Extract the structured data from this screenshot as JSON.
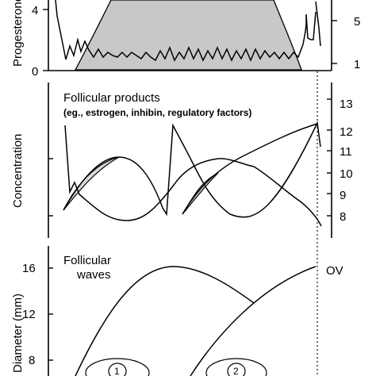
{
  "chart_data": [
    {
      "type": "area",
      "panel": "progesterone",
      "ylabel": "Progesterone",
      "left_ticks": [
        "0",
        "4"
      ],
      "right_ticks": [
        "1",
        "5"
      ],
      "grid": false
    },
    {
      "type": "line",
      "panel": "follicular-products",
      "title": "Follicular products",
      "subtitle": "(eg., estrogen, inhibin, regulatory factors)",
      "ylabel": "Concentration",
      "right_ticks": [
        "8",
        "9",
        "10",
        "11",
        "12",
        "13"
      ],
      "grid": false
    },
    {
      "type": "line",
      "panel": "follicular-waves",
      "title": "Follicular",
      "title_line2": "waves",
      "ylabel": "Diameter (mm)",
      "y_ticks": [
        "8",
        "12",
        "16"
      ],
      "ylim": [
        6,
        18
      ],
      "annotation": "OV",
      "wave_labels": [
        "1",
        "2"
      ],
      "grid": false
    }
  ]
}
